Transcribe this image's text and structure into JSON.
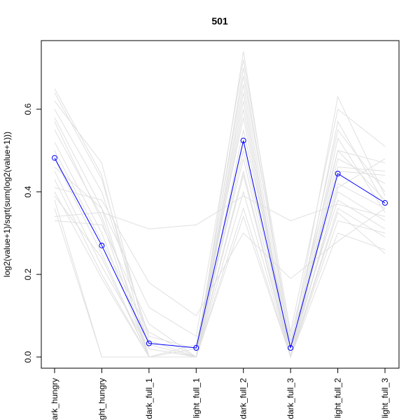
{
  "chart_data": {
    "type": "line",
    "title": "501",
    "xlabel": "",
    "ylabel": "log2(value+1)/sqrt(sum(log2(value+1)))",
    "categories": [
      "dark_hungry",
      "light_hungry",
      "dark_full_1",
      "light_full_1",
      "dark_full_2",
      "dark_full_3",
      "light_full_2",
      "light_full_3"
    ],
    "ylim": [
      -0.02,
      0.78
    ],
    "yticks": [
      "0.0",
      "0.2",
      "0.4",
      "0.6"
    ],
    "grid": false,
    "highlight_series": {
      "color": "#0000ff",
      "marker": "open-circle",
      "values": [
        0.482,
        0.27,
        0.033,
        0.022,
        0.524,
        0.022,
        0.444,
        0.373
      ]
    },
    "background_series_color": "#e0e0e0",
    "background_series": [
      [
        0.65,
        0.44,
        0.0,
        0.0,
        0.6,
        0.0,
        0.53,
        0.35
      ],
      [
        0.62,
        0.47,
        0.02,
        0.0,
        0.7,
        0.03,
        0.55,
        0.4
      ],
      [
        0.6,
        0.4,
        0.05,
        0.02,
        0.68,
        0.05,
        0.5,
        0.38
      ],
      [
        0.58,
        0.36,
        0.0,
        0.0,
        0.62,
        0.0,
        0.48,
        0.42
      ],
      [
        0.55,
        0.34,
        0.03,
        0.0,
        0.66,
        0.02,
        0.46,
        0.45
      ],
      [
        0.52,
        0.3,
        0.0,
        0.03,
        0.58,
        0.0,
        0.5,
        0.47
      ],
      [
        0.5,
        0.28,
        0.06,
        0.0,
        0.55,
        0.04,
        0.42,
        0.36
      ],
      [
        0.48,
        0.25,
        0.0,
        0.0,
        0.52,
        0.0,
        0.4,
        0.33
      ],
      [
        0.45,
        0.22,
        0.02,
        0.0,
        0.5,
        0.02,
        0.38,
        0.31
      ],
      [
        0.43,
        0.2,
        0.0,
        0.02,
        0.48,
        0.0,
        0.45,
        0.44
      ],
      [
        0.4,
        0.19,
        0.0,
        0.0,
        0.45,
        0.0,
        0.36,
        0.29
      ],
      [
        0.38,
        0.0,
        0.0,
        0.0,
        0.4,
        0.0,
        0.33,
        0.3
      ],
      [
        0.36,
        0.0,
        0.0,
        0.0,
        0.36,
        0.0,
        0.3,
        0.26
      ],
      [
        0.34,
        0.35,
        0.31,
        0.32,
        0.39,
        0.33,
        0.37,
        0.34
      ],
      [
        0.41,
        0.38,
        0.18,
        0.1,
        0.3,
        0.19,
        0.28,
        0.36
      ],
      [
        0.33,
        0.32,
        0.08,
        0.0,
        0.34,
        0.0,
        0.35,
        0.25
      ],
      [
        0.46,
        0.36,
        0.12,
        0.05,
        0.72,
        0.06,
        0.6,
        0.51
      ],
      [
        0.64,
        0.43,
        0.04,
        0.0,
        0.74,
        0.02,
        0.63,
        0.39
      ],
      [
        0.39,
        0.24,
        0.0,
        0.0,
        0.44,
        0.0,
        0.41,
        0.48
      ],
      [
        0.57,
        0.33,
        0.0,
        0.0,
        0.64,
        0.0,
        0.57,
        0.37
      ]
    ]
  }
}
